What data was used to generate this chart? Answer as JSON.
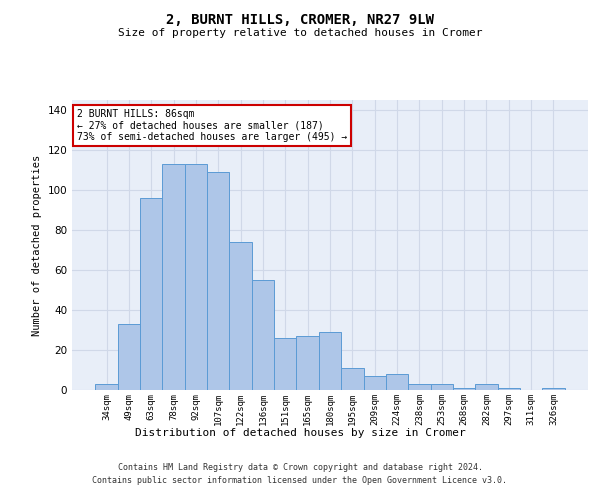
{
  "title_line1": "2, BURNT HILLS, CROMER, NR27 9LW",
  "title_line2": "Size of property relative to detached houses in Cromer",
  "xlabel": "Distribution of detached houses by size in Cromer",
  "ylabel": "Number of detached properties",
  "bar_labels": [
    "34sqm",
    "49sqm",
    "63sqm",
    "78sqm",
    "92sqm",
    "107sqm",
    "122sqm",
    "136sqm",
    "151sqm",
    "165sqm",
    "180sqm",
    "195sqm",
    "209sqm",
    "224sqm",
    "238sqm",
    "253sqm",
    "268sqm",
    "282sqm",
    "297sqm",
    "311sqm",
    "326sqm"
  ],
  "bar_values": [
    3,
    33,
    96,
    113,
    113,
    109,
    74,
    55,
    26,
    27,
    29,
    11,
    7,
    8,
    3,
    3,
    1,
    3,
    1,
    0,
    1
  ],
  "bar_color": "#aec6e8",
  "bar_edge_color": "#5b9bd5",
  "ylim": [
    0,
    145
  ],
  "yticks": [
    0,
    20,
    40,
    60,
    80,
    100,
    120,
    140
  ],
  "annotation_text": "2 BURNT HILLS: 86sqm\n← 27% of detached houses are smaller (187)\n73% of semi-detached houses are larger (495) →",
  "annotation_box_color": "#ffffff",
  "annotation_box_edge_color": "#cc0000",
  "grid_color": "#d0d8e8",
  "background_color": "#e8eef8",
  "footer_line1": "Contains HM Land Registry data © Crown copyright and database right 2024.",
  "footer_line2": "Contains public sector information licensed under the Open Government Licence v3.0."
}
